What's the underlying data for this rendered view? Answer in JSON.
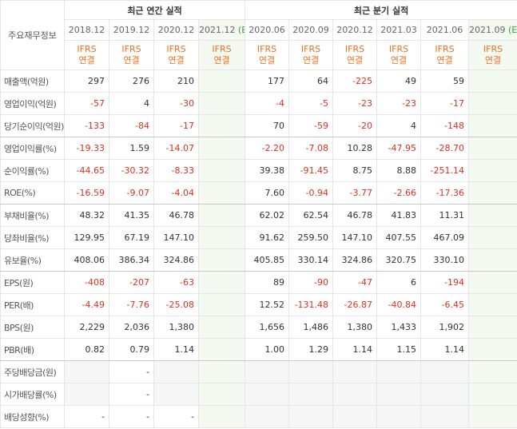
{
  "header": {
    "title": "주요재무정보",
    "annual": "최근 연간 실적",
    "quarterly": "최근 분기 실적"
  },
  "columns": [
    {
      "period": "2018.12",
      "basis": [
        "IFRS",
        "연결"
      ]
    },
    {
      "period": "2019.12",
      "basis": [
        "IFRS",
        "연결"
      ]
    },
    {
      "period": "2020.12",
      "basis": [
        "IFRS",
        "연결"
      ]
    },
    {
      "period": "2021.12",
      "estimate": "(E)",
      "basis": [
        "IFRS",
        "연결"
      ]
    },
    {
      "period": "2020.06",
      "basis": [
        "IFRS",
        "연결"
      ]
    },
    {
      "period": "2020.09",
      "basis": [
        "IFRS",
        "연결"
      ]
    },
    {
      "period": "2020.12",
      "basis": [
        "IFRS",
        "연결"
      ]
    },
    {
      "period": "2021.03",
      "basis": [
        "IFRS",
        "연결"
      ]
    },
    {
      "period": "2021.06",
      "basis": [
        "IFRS",
        "연결"
      ]
    },
    {
      "period": "2021.09",
      "estimate": "(E)",
      "basis": [
        "IFRS",
        "연결"
      ]
    }
  ],
  "rows": [
    {
      "label": "매출액(억원)",
      "cells": [
        "297",
        "276",
        "210",
        null,
        "177",
        "64",
        "-225",
        "49",
        "59",
        null
      ]
    },
    {
      "label": "영업이익(억원)",
      "cells": [
        "-57",
        "4",
        "-30",
        null,
        "-4",
        "-5",
        "-23",
        "-23",
        "-17",
        null
      ]
    },
    {
      "label": "당기순이익(억원)",
      "cells": [
        "-133",
        "-84",
        "-17",
        null,
        "70",
        "-59",
        "-20",
        "4",
        "-148",
        null
      ]
    },
    {
      "label": "영업이익률(%)",
      "cells": [
        "-19.33",
        "1.59",
        "-14.07",
        null,
        "-2.20",
        "-7.08",
        "10.28",
        "-47.95",
        "-28.70",
        null
      ]
    },
    {
      "label": "순이익률(%)",
      "cells": [
        "-44.65",
        "-30.32",
        "-8.33",
        null,
        "39.38",
        "-91.45",
        "8.75",
        "8.88",
        "-251.14",
        null
      ]
    },
    {
      "label": "ROE(%)",
      "cells": [
        "-16.59",
        "-9.07",
        "-4.04",
        null,
        "7.60",
        "-0.94",
        "-3.77",
        "-2.66",
        "-17.36",
        null
      ]
    },
    {
      "label": "부채비율(%)",
      "cells": [
        "48.32",
        "41.35",
        "46.78",
        null,
        "62.02",
        "62.54",
        "46.78",
        "41.83",
        "11.31",
        null
      ]
    },
    {
      "label": "당좌비율(%)",
      "cells": [
        "129.95",
        "67.19",
        "147.10",
        null,
        "91.62",
        "259.50",
        "147.10",
        "407.55",
        "467.09",
        null
      ]
    },
    {
      "label": "유보율(%)",
      "cells": [
        "408.06",
        "386.34",
        "324.86",
        null,
        "405.85",
        "330.14",
        "324.86",
        "320.75",
        "330.10",
        null
      ]
    },
    {
      "label": "EPS(원)",
      "cells": [
        "-408",
        "-207",
        "-63",
        null,
        "89",
        "-90",
        "-47",
        "6",
        "-194",
        null
      ]
    },
    {
      "label": "PER(배)",
      "cells": [
        "-4.49",
        "-7.76",
        "-25.08",
        null,
        "12.52",
        "-131.48",
        "-26.87",
        "-40.84",
        "-6.45",
        null
      ]
    },
    {
      "label": "BPS(원)",
      "cells": [
        "2,229",
        "2,036",
        "1,380",
        null,
        "1,656",
        "1,486",
        "1,380",
        "1,433",
        "1,902",
        null
      ]
    },
    {
      "label": "PBR(배)",
      "cells": [
        "0.82",
        "0.79",
        "1.14",
        null,
        "1.00",
        "1.29",
        "1.14",
        "1.15",
        "1.14",
        null
      ]
    },
    {
      "label": "주당배당금(원)",
      "cells": [
        null,
        "-",
        null,
        null,
        null,
        null,
        null,
        null,
        null,
        null
      ]
    },
    {
      "label": "시가배당률(%)",
      "cells": [
        null,
        "-",
        null,
        null,
        null,
        null,
        null,
        null,
        null,
        null
      ]
    },
    {
      "label": "배당성향(%)",
      "cells": [
        "-",
        "-",
        "-",
        null,
        null,
        null,
        null,
        null,
        null,
        null
      ]
    }
  ]
}
